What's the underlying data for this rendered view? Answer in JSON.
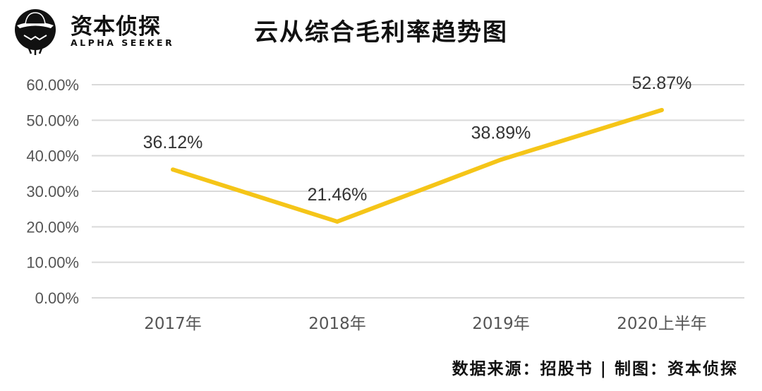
{
  "logo": {
    "name": "资本侦探",
    "tagline": "ALPHA SEEKER"
  },
  "source_note": "数据来源：招股书 | 制图：资本侦探",
  "chart_data": {
    "type": "line",
    "title": "云从综合毛利率趋势图",
    "categories": [
      "2017年",
      "2018年",
      "2019年",
      "2020上半年"
    ],
    "series": [
      {
        "values": [
          36.12,
          21.46,
          38.89,
          52.87
        ],
        "labels": [
          "36.12%",
          "21.46%",
          "38.89%",
          "52.87%"
        ],
        "color": "#F5C518"
      }
    ],
    "y_ticks": [
      "0.00%",
      "10.00%",
      "20.00%",
      "30.00%",
      "40.00%",
      "50.00%",
      "60.00%"
    ],
    "ylim": [
      0,
      60
    ],
    "grid": true,
    "legend": "none",
    "colors": {
      "line": "#F5C518",
      "grid": "#d9d9d9",
      "tick_text": "#555555"
    }
  }
}
